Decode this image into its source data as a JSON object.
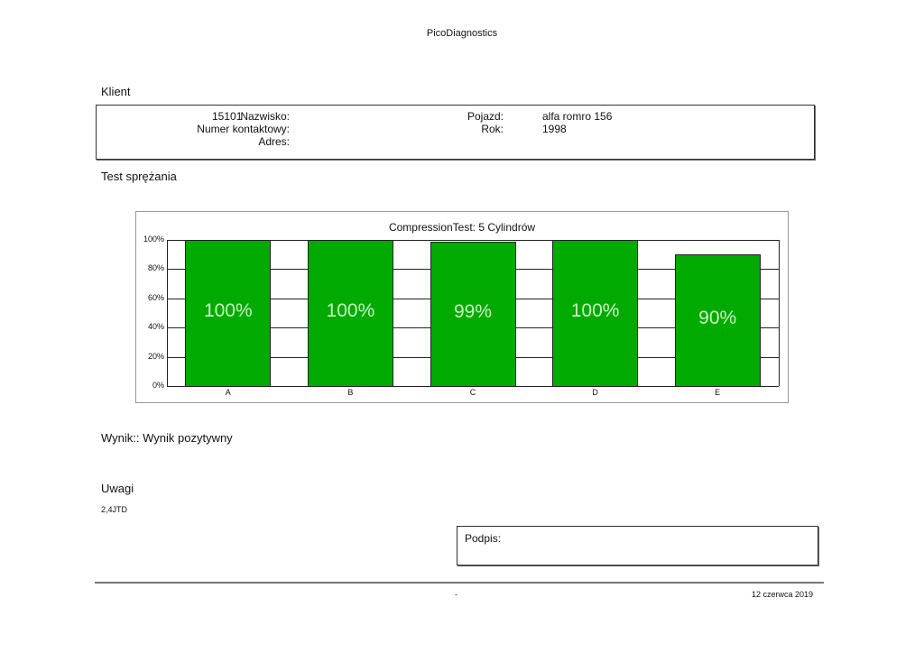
{
  "header": {
    "title": "PicoDiagnostics"
  },
  "client": {
    "section_title": "Klient",
    "surname_label": "Nazwisko:",
    "surname_value": "15101",
    "contact_label": "Numer kontaktowy:",
    "address_label": "Adres:",
    "vehicle_label": "Pojazd:",
    "vehicle_value": "alfa romro 156",
    "year_label": "Rok:",
    "year_value": "1998"
  },
  "test": {
    "section_title": "Test sprężania"
  },
  "chart_data": {
    "type": "bar",
    "title": "CompressionTest: 5 Cylindrów",
    "categories": [
      "A",
      "B",
      "C",
      "D",
      "E"
    ],
    "values": [
      100,
      100,
      99,
      100,
      90
    ],
    "value_labels": [
      "100%",
      "100%",
      "99%",
      "100%",
      "90%"
    ],
    "yticks": [
      "0%",
      "20%",
      "40%",
      "60%",
      "80%",
      "100%"
    ],
    "ylim": [
      0,
      100
    ],
    "xlabel": "",
    "ylabel": "",
    "grid": true,
    "bar_color": "#00aa00"
  },
  "result": {
    "text": "Wynik:: Wynik pozytywny"
  },
  "notes": {
    "section_title": "Uwagi",
    "text": "2,4JTD"
  },
  "signature": {
    "label": "Podpis:"
  },
  "footer": {
    "center": "-",
    "date": "12 czerwca 2019"
  }
}
